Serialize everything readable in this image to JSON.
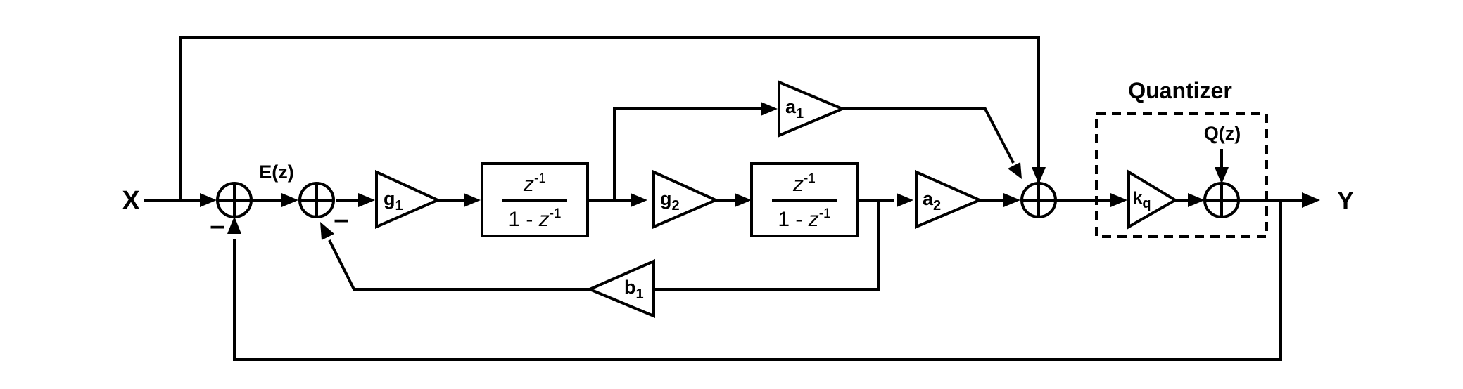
{
  "io": {
    "input_label": "X",
    "output_label": "Y",
    "error_label": "E(z)"
  },
  "signs": {
    "sum1_minus": "–",
    "sum2_minus": "–"
  },
  "gains": {
    "g1": {
      "base": "g",
      "sub": "1"
    },
    "g2": {
      "base": "g",
      "sub": "2"
    },
    "a1": {
      "base": "a",
      "sub": "1"
    },
    "a2": {
      "base": "a",
      "sub": "2"
    },
    "b1": {
      "base": "b",
      "sub": "1"
    },
    "kq": {
      "base": "k",
      "sub": "q"
    }
  },
  "integrators": {
    "int1": {
      "num_base": "z",
      "num_exp": "-1",
      "den_prefix": "1 - ",
      "den_base": "z",
      "den_exp": "-1"
    },
    "int2": {
      "num_base": "z",
      "num_exp": "-1",
      "den_prefix": "1 - ",
      "den_base": "z",
      "den_exp": "-1"
    }
  },
  "quantizer": {
    "title": "Quantizer",
    "noise_label": "Q(z)"
  }
}
